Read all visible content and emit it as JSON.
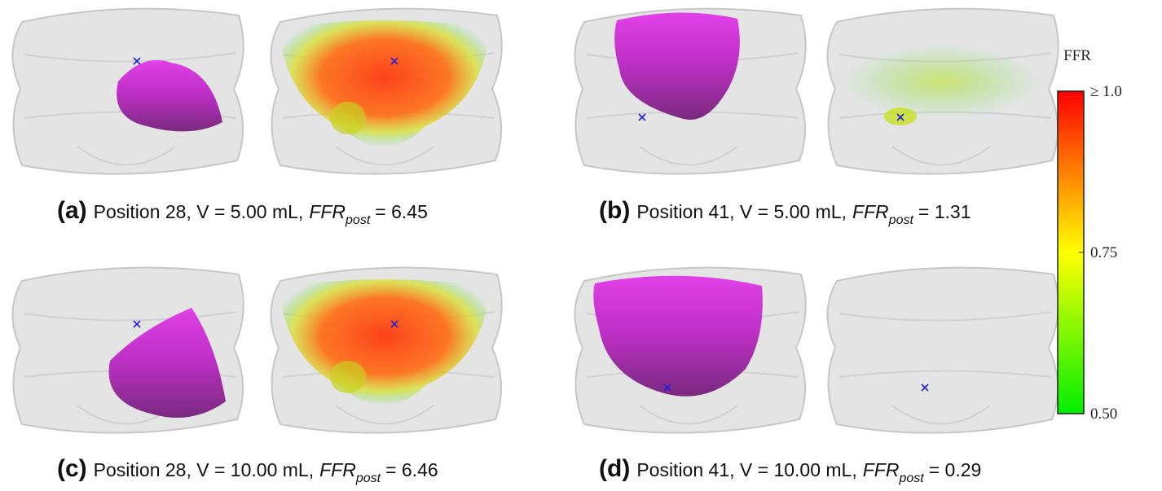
{
  "panels": [
    {
      "label": "(a)",
      "text": "Position 28, V = 5.00 mL,",
      "ffr": "FFR",
      "sub": "post",
      "value": "= 6.45"
    },
    {
      "label": "(b)",
      "text": "Position 41, V = 5.00 mL,",
      "ffr": "FFR",
      "sub": "post",
      "value": "= 1.31"
    },
    {
      "label": "(c)",
      "text": "Position 28, V = 10.00 mL,",
      "ffr": "FFR",
      "sub": "post",
      "value": "= 6.46"
    },
    {
      "label": "(d)",
      "text": "Position 41, V = 10.00 mL,",
      "ffr": "FFR",
      "sub": "post",
      "value": "= 0.29"
    }
  ],
  "colorbar": {
    "title": "FFR",
    "ticks": [
      "≥ 1.0",
      "0.75",
      "0.50"
    ]
  }
}
